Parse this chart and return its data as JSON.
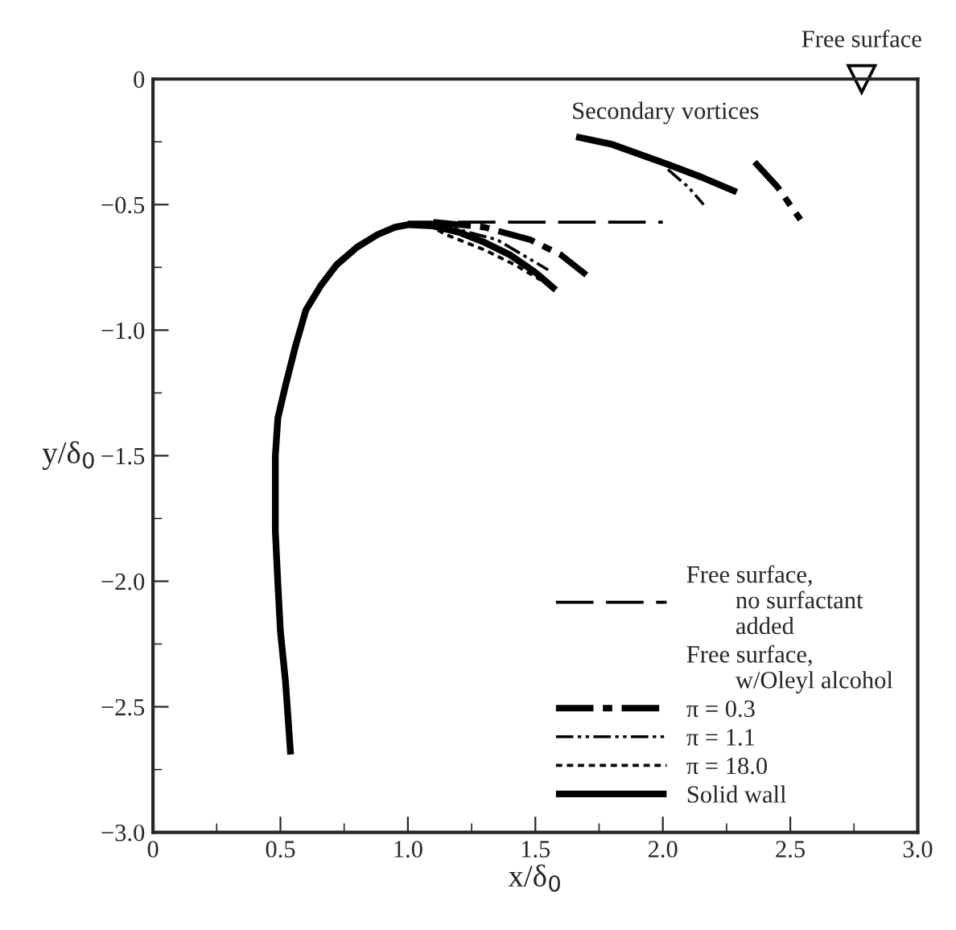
{
  "chart_data": {
    "type": "line",
    "xlabel": "x/δ$_{0}$",
    "ylabel": "y/δ$_{0}$",
    "xlim": [
      0,
      3.0
    ],
    "ylim": [
      -3.0,
      0
    ],
    "xticks": [
      0,
      {
        "value": 0.5,
        "label": "0.5"
      },
      {
        "value": 1,
        "label": "1.0"
      },
      {
        "value": 1.5,
        "label": "1.5"
      },
      {
        "value": 2,
        "label": "2.0"
      },
      {
        "value": 2.5,
        "label": "2.5"
      },
      {
        "value": 3,
        "label": "3.0"
      }
    ],
    "yticks": [
      {
        "value": -3,
        "label": "−3.0"
      },
      {
        "value": -2.5,
        "label": "−2.5"
      },
      {
        "value": -2,
        "label": "−2.0"
      },
      {
        "value": -1.5,
        "label": "−1.5"
      },
      {
        "value": -1,
        "label": "−1.0"
      },
      {
        "value": -0.5,
        "label": "−0.5"
      },
      0
    ],
    "grid": false,
    "legend": "bottom right",
    "marker": "none",
    "legend_title": "Free surface,\n        w/Oleyl alcohol",
    "annotations": [
      {
        "text": "Free surface",
        "x": 2.78,
        "y": 0
      },
      "Secondary vortices"
    ],
    "series": [
      {
        "name": "Free surface,\n        no surfactant\n        added",
        "color": "#000000",
        "line_style": "dashed",
        "x": [
          1.0,
          1.5,
          2.0
        ],
        "values": [
          -0.57,
          -0.57,
          -0.57
        ]
      },
      {
        "name": "π = 0.3",
        "color": "#000000",
        "line_style": "dashdot",
        "x": [
          1.1,
          1.3,
          1.48,
          1.6,
          1.7,
          2.0,
          2.36,
          2.45,
          2.54
        ],
        "values": [
          -0.57,
          -0.59,
          -0.64,
          -0.7,
          -0.78,
          null,
          -0.33,
          -0.43,
          -0.56
        ]
      },
      {
        "name": "π = 1.1",
        "color": "#000000",
        "line_style": "dashdotdot",
        "x": [
          1.1,
          1.2,
          1.35,
          1.45,
          1.55,
          1.8,
          2.02,
          2.1,
          2.16
        ],
        "values": [
          -0.57,
          -0.6,
          -0.64,
          -0.7,
          -0.76,
          null,
          -0.36,
          -0.43,
          -0.5
        ]
      },
      {
        "name": "π = 18.0",
        "color": "#000000",
        "line_style": "dotted",
        "x": [
          1.08,
          1.15,
          1.3,
          1.42,
          1.52
        ],
        "values": [
          -0.58,
          -0.62,
          -0.68,
          -0.74,
          -0.8
        ]
      },
      {
        "name": "Solid wall",
        "color": "#000000",
        "line_style": "solid",
        "x": [
          0.54,
          0.52,
          0.5,
          0.49,
          0.48,
          0.48,
          0.49,
          0.52,
          0.56,
          0.6,
          0.66,
          0.72,
          0.8,
          0.88,
          0.95,
          1.0,
          1.1,
          1.2,
          1.3,
          1.4,
          1.5,
          1.58,
          1.6,
          1.66,
          1.8,
          2.02,
          2.15,
          2.29
        ],
        "values": [
          -2.69,
          -2.4,
          -2.2,
          -2.01,
          -1.8,
          -1.5,
          -1.35,
          -1.22,
          -1.06,
          -0.92,
          -0.82,
          -0.74,
          -0.67,
          -0.62,
          -0.59,
          -0.58,
          -0.585,
          -0.61,
          -0.65,
          -0.7,
          -0.77,
          -0.84,
          null,
          -0.23,
          -0.26,
          -0.34,
          -0.39,
          -0.45
        ]
      }
    ]
  }
}
